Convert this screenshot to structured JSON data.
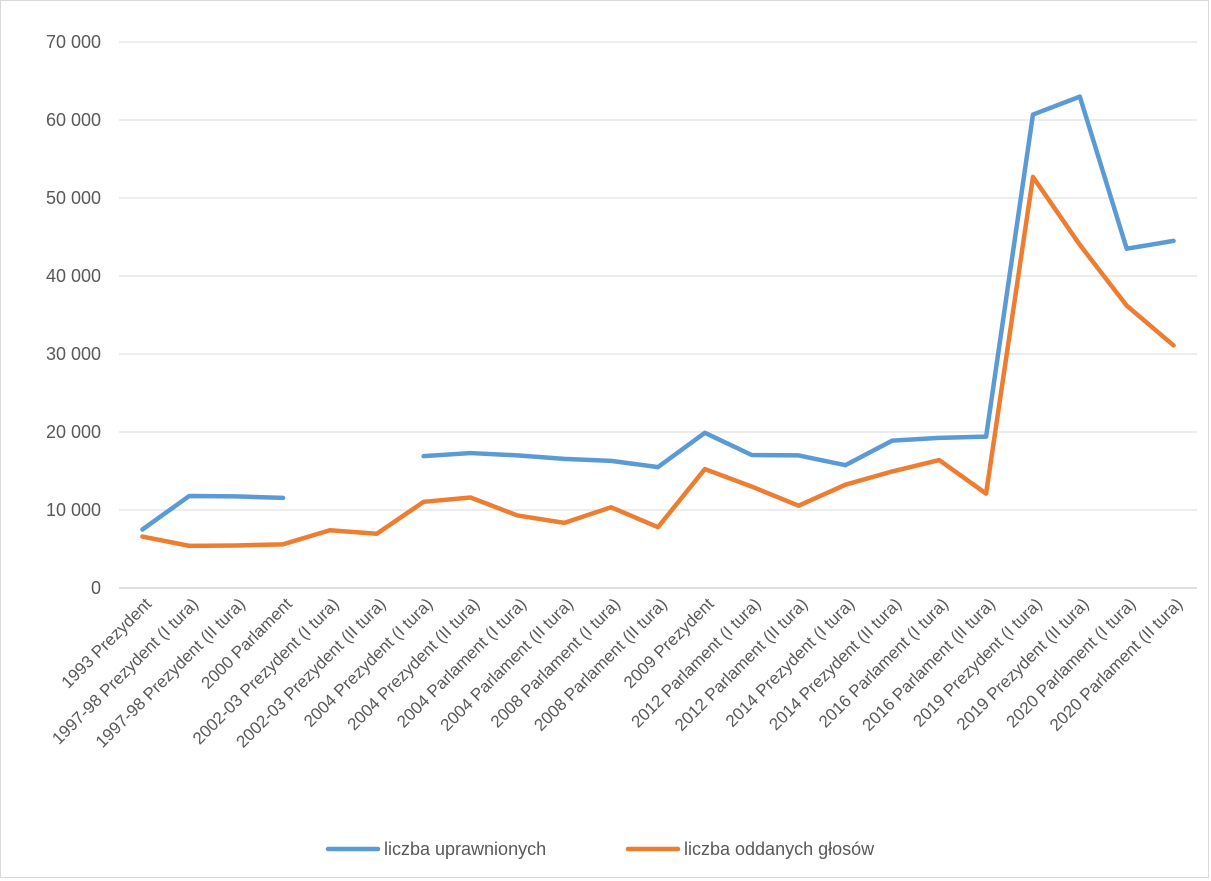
{
  "chart_data": {
    "type": "line",
    "categories": [
      "1993 Prezydent",
      "1997-98 Prezydent (I tura)",
      "1997-98 Prezydent (II tura)",
      "2000 Parlament",
      "2002-03 Prezydent (I tura)",
      "2002-03 Prezydent (II tura)",
      "2004 Prezydent (I tura)",
      "2004 Prezydent (II tura)",
      "2004 Parlament (I tura)",
      "2004 Parlament (II tura)",
      "2008 Parlament (I tura)",
      "2008 Parlament (II tura)",
      "2009 Prezydent",
      "2012 Parlament (I tura)",
      "2012 Parlament (II tura)",
      "2014 Prezydent (I tura)",
      "2014 Prezydent (II tura)",
      "2016 Parlament (I tura)",
      "2016 Parlament (II tura)",
      "2019 Prezydent (I tura)",
      "2019 Prezydent (II tura)",
      "2020 Parlament (I tura)",
      "2020 Parlament (II tura)"
    ],
    "series": [
      {
        "name": "liczba uprawnionych",
        "color": "#5b9bd5",
        "values": [
          7500,
          11800,
          11750,
          11550,
          null,
          null,
          16900,
          17300,
          17000,
          16550,
          16300,
          15500,
          19900,
          17050,
          17000,
          15750,
          18900,
          19250,
          19400,
          60700,
          63000,
          43500,
          44500
        ]
      },
      {
        "name": "liczba oddanych głosów",
        "color": "#ed7d31",
        "values": [
          6600,
          5400,
          5450,
          5600,
          7400,
          6950,
          11050,
          11600,
          9300,
          8350,
          10350,
          7800,
          15250,
          13000,
          10550,
          13250,
          14950,
          16400,
          12100,
          52700,
          44000,
          36200,
          31100
        ]
      }
    ],
    "yticks": [
      "0",
      "10 000",
      "20 000",
      "30 000",
      "40 000",
      "50 000",
      "60 000",
      "70 000"
    ],
    "ylim": [
      0,
      70000
    ],
    "grid": true,
    "legend_position": "bottom"
  }
}
